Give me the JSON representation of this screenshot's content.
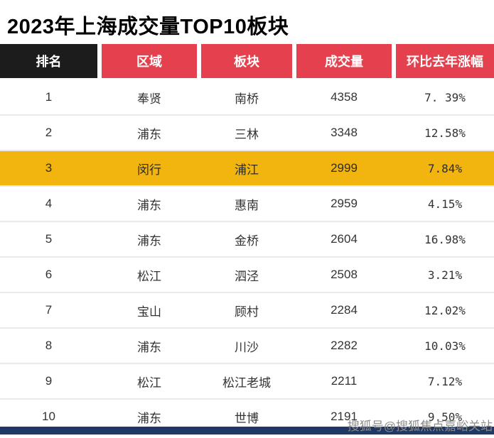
{
  "page": {
    "title": "2023年上海成交量TOP10板块",
    "watermark": "搜狐号@搜狐焦点嘉峪关站"
  },
  "colors": {
    "header_red": "#e5404e",
    "header_black": "#1c1c1c",
    "highlight_gold": "#f2b50f",
    "bottom_bar_navy": "#203864",
    "watermark_gray": "#8c8c8c"
  },
  "chart_data": {
    "type": "table",
    "title": "2023年上海成交量TOP10板块",
    "columns": [
      "排名",
      "区域",
      "板块",
      "成交量",
      "环比去年涨幅"
    ],
    "rows": [
      [
        "1",
        "奉贤",
        "南桥",
        "4358",
        "7. 39%"
      ],
      [
        "2",
        "浦东",
        "三林",
        "3348",
        "12.58%"
      ],
      [
        "3",
        "闵行",
        "浦江",
        "2999",
        "7.84%"
      ],
      [
        "4",
        "浦东",
        "惠南",
        "2959",
        "4.15%"
      ],
      [
        "5",
        "浦东",
        "金桥",
        "2604",
        "16.98%"
      ],
      [
        "6",
        "松江",
        "泗泾",
        "2508",
        "3.21%"
      ],
      [
        "7",
        "宝山",
        "顾村",
        "2284",
        "12.02%"
      ],
      [
        "8",
        "浦东",
        "川沙",
        "2282",
        "10.03%"
      ],
      [
        "9",
        "松江",
        "松江老城",
        "2211",
        "7.12%"
      ],
      [
        "10",
        "浦东",
        "世博",
        "2191",
        "9.50%"
      ]
    ],
    "highlighted_row_rank": "3"
  }
}
